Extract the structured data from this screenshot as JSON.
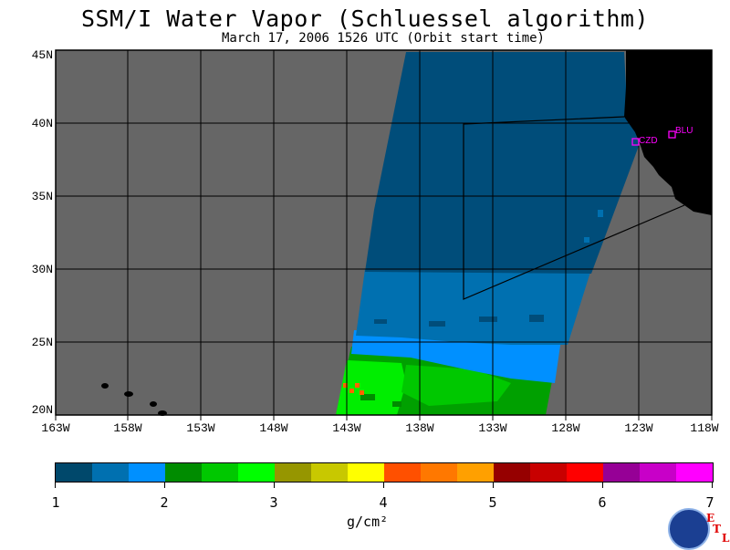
{
  "title": "SSM/I Water Vapor (Schluessel algorithm)",
  "subtitle": "March 17, 2006  1526 UTC  (Orbit start time)",
  "map": {
    "lat_labels": [
      "45N",
      "40N",
      "35N",
      "30N",
      "25N",
      "20N"
    ],
    "lon_labels": [
      "163W",
      "158W",
      "153W",
      "148W",
      "143W",
      "138W",
      "133W",
      "128W",
      "123W",
      "118W"
    ],
    "stations": [
      {
        "id": "CZD",
        "label": "CZD"
      },
      {
        "id": "BLU",
        "label": "BLU"
      }
    ],
    "colors": {
      "no_data": "#666666",
      "land": "#000000",
      "swath_high_lat": "#004d7a",
      "station": "#ff00ff"
    }
  },
  "colorbar": {
    "labels": [
      "1",
      "2",
      "3",
      "4",
      "5",
      "6",
      "7"
    ],
    "units": "g/cm²",
    "colors": [
      "#00486b",
      "#0070b0",
      "#0090ff",
      "#008c00",
      "#00c800",
      "#00ff00",
      "#969600",
      "#c8c800",
      "#ffff00",
      "#ff5000",
      "#ff7800",
      "#ffa000",
      "#960000",
      "#c80000",
      "#ff0000",
      "#960096",
      "#c800c8",
      "#ff00ff"
    ]
  },
  "logo": {
    "noaa": "NOAA",
    "etl_letters": [
      "E",
      "T",
      "L"
    ]
  }
}
